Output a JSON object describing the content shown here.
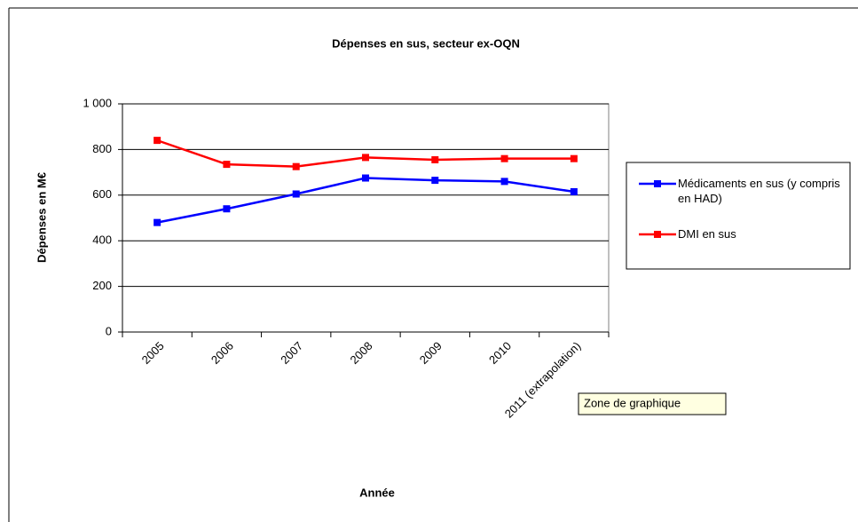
{
  "chart_data": {
    "type": "line",
    "title": "Dépenses en sus, secteur ex-OQN",
    "x_label": "Année",
    "y_label": "Dépenses en M€",
    "categories": [
      "2005",
      "2006",
      "2007",
      "2008",
      "2009",
      "2010",
      "2011 (extrapolation)"
    ],
    "series": [
      {
        "name": "Médicaments en sus (y compris en HAD)",
        "color": "#0000ff",
        "values": [
          480,
          540,
          605,
          675,
          665,
          660,
          615
        ]
      },
      {
        "name": "DMI en sus",
        "color": "#ff0000",
        "values": [
          840,
          735,
          725,
          765,
          755,
          760,
          760
        ]
      }
    ],
    "ylim": [
      0,
      1000
    ],
    "yticks": [
      0,
      200,
      400,
      600,
      800,
      {
        "value": 1000,
        "label": "1 000"
      }
    ],
    "grid": true,
    "legend": "right"
  },
  "tooltip": "Zone de graphique"
}
